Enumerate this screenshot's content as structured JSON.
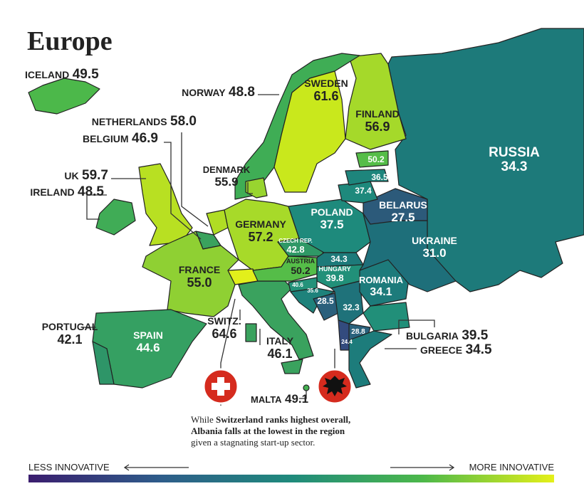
{
  "title": "Europe",
  "countries": [
    {
      "name": "ICELAND",
      "value": 49.5,
      "color": "#4cb84a"
    },
    {
      "name": "NORWAY",
      "value": 48.8,
      "color": "#3fad55"
    },
    {
      "name": "SWEDEN",
      "value": 61.6,
      "color": "#c9e81c"
    },
    {
      "name": "FINLAND",
      "value": 56.9,
      "color": "#a5d92a"
    },
    {
      "name": "RUSSIA",
      "value": 34.3,
      "color": "#1d7a7a"
    },
    {
      "name": "NETHERLANDS",
      "value": 58.0,
      "value_label": "58.0",
      "color": "#b0dd24"
    },
    {
      "name": "BELGIUM",
      "value": 46.9,
      "color": "#3aa25e"
    },
    {
      "name": "UK",
      "value": 59.7,
      "color": "#b8e022"
    },
    {
      "name": "IRELAND",
      "value": 48.5,
      "color": "#40ac56"
    },
    {
      "name": "DENMARK",
      "value": 55.9,
      "color": "#98d52f"
    },
    {
      "name": "GERMANY",
      "value": 57.2,
      "color": "#a7da29"
    },
    {
      "name": "POLAND",
      "value": 37.5,
      "color": "#1e8a7c"
    },
    {
      "name": "BELARUS",
      "value": 27.5,
      "color": "#2c5a7a"
    },
    {
      "name": "UKRAINE",
      "value": 31.0,
      "value_label": "31.0",
      "color": "#1e6f7a"
    },
    {
      "name": "FRANCE",
      "value": 55.0,
      "value_label": "55.0",
      "color": "#8fd033"
    },
    {
      "name": "CZECH REP.",
      "value": 42.8,
      "color": "#2f9866"
    },
    {
      "name": "AUSTRIA",
      "value": 50.2,
      "color": "#55bd48"
    },
    {
      "name": "HUNGARY",
      "value": 39.8,
      "color": "#219079"
    },
    {
      "name": "ROMANIA",
      "value": 34.1,
      "color": "#1d7b7b"
    },
    {
      "name": "SWITZ.",
      "value": 64.6,
      "color": "#e2ef1b"
    },
    {
      "name": "PORTUGAL",
      "value": 42.1,
      "color": "#2e9568"
    },
    {
      "name": "SPAIN",
      "value": 44.6,
      "color": "#35a062"
    },
    {
      "name": "ITALY",
      "value": 46.1,
      "color": "#3aa25e"
    },
    {
      "name": "MALTA",
      "value": 49.1,
      "color": "#45b052"
    },
    {
      "name": "BULGARIA",
      "value": 39.5,
      "color": "#218f79"
    },
    {
      "name": "GREECE",
      "value": 34.5,
      "color": "#1d7c7b"
    },
    {
      "value": 50.2,
      "color": "#55bd48"
    },
    {
      "value": 36.5,
      "color": "#1e857c"
    },
    {
      "value": 37.4,
      "color": "#1e897c"
    },
    {
      "value": 34.3,
      "color": "#1d7a7a"
    },
    {
      "value": 40.6,
      "color": "#24927a"
    },
    {
      "value": 35.6,
      "color": "#1e827b"
    },
    {
      "value": 28.5,
      "color": "#2a607c"
    },
    {
      "value": 32.3,
      "color": "#1f727a"
    },
    {
      "value": 28.8,
      "color": "#2a627c"
    },
    {
      "value": 24.4,
      "color": "#334b7e"
    }
  ],
  "annotation": {
    "lead": "While",
    "bold_1": "Switzerland ranks highest overall,",
    "bold_2": "Albania falls at the lowest in the region",
    "tail": "given a stagnating start-up sector."
  },
  "legend": {
    "less": "LESS INNOVATIVE",
    "more": "MORE INNOVATIVE",
    "colors": [
      "#3a1d6e",
      "#2e5c8a",
      "#1f8a7c",
      "#4cb84a",
      "#e5f019"
    ]
  }
}
